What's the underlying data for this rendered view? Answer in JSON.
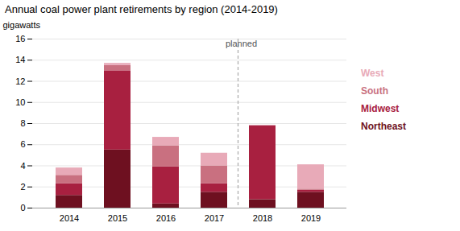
{
  "chart_data": {
    "type": "bar",
    "title": "Annual coal power plant retirements by region (2014-2019)",
    "ylabel": "gigawatts",
    "categories": [
      "2014",
      "2015",
      "2016",
      "2017",
      "2018",
      "2019"
    ],
    "series": [
      {
        "name": "Northeast",
        "color": "#6e1020",
        "values": [
          1.2,
          5.5,
          0.4,
          1.5,
          0.8,
          1.5
        ]
      },
      {
        "name": "Midwest",
        "color": "#a82040",
        "values": [
          1.1,
          7.5,
          3.5,
          0.8,
          7.0,
          0.2
        ]
      },
      {
        "name": "South",
        "color": "#c97080",
        "values": [
          0.8,
          0.5,
          2.0,
          1.7,
          0.0,
          0.1
        ]
      },
      {
        "name": "West",
        "color": "#e8aab8",
        "values": [
          0.7,
          0.2,
          0.8,
          1.2,
          0.0,
          2.3
        ]
      }
    ],
    "stacked": true,
    "ylim": [
      0,
      16
    ],
    "yticks": [
      0,
      2,
      4,
      6,
      8,
      10,
      12,
      14,
      16
    ],
    "grid": true,
    "legend": "right",
    "annotations": [
      {
        "text": "planned",
        "between": [
          "2017",
          "2018"
        ]
      }
    ]
  }
}
